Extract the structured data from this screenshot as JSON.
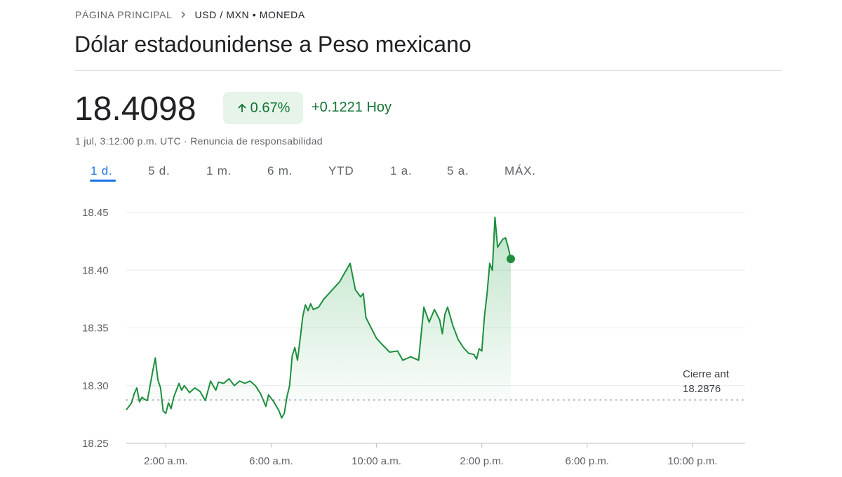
{
  "breadcrumb": {
    "home": "PÁGINA PRINCIPAL",
    "current": "USD / MXN • MONEDA"
  },
  "title": "Dólar estadounidense a Peso mexicano",
  "quote": {
    "price": "18.4098",
    "percent": "0.67%",
    "change": "+0.1221 Hoy",
    "timestamp": "1 jul, 3:12:00 p.m. UTC ·",
    "disclaimer": "Renuncia de responsabilidad"
  },
  "tabs": [
    "1 d.",
    "5 d.",
    "1 m.",
    "6 m.",
    "YTD",
    "1 a.",
    "5 a.",
    "MÁX."
  ],
  "active_tab": "1 d.",
  "colors": {
    "up": "#137333",
    "line": "#1e8e3e",
    "accent": "#1a73e8"
  },
  "chart_data": {
    "type": "line",
    "ylim": [
      18.25,
      18.45
    ],
    "xlim": [
      0.5,
      24
    ],
    "yticks": [
      "18.45",
      "18.40",
      "18.35",
      "18.30",
      "18.25"
    ],
    "xticks": [
      "2:00 a.m.",
      "6:00 a.m.",
      "10:00 a.m.",
      "2:00 p.m.",
      "6:00 p.m.",
      "10:00 p.m."
    ],
    "xtick_hours": [
      2,
      6,
      10,
      14,
      18,
      22
    ],
    "previous_close": 18.2876,
    "previous_close_label": "Cierre ant",
    "previous_close_value": "18.2876",
    "x": [
      0.5,
      0.7,
      0.8,
      0.9,
      1.0,
      1.1,
      1.2,
      1.3,
      1.5,
      1.6,
      1.7,
      1.8,
      1.9,
      2.0,
      2.1,
      2.2,
      2.3,
      2.5,
      2.6,
      2.7,
      2.9,
      3.1,
      3.3,
      3.5,
      3.7,
      3.9,
      4.0,
      4.2,
      4.4,
      4.6,
      4.8,
      5.0,
      5.2,
      5.4,
      5.6,
      5.8,
      5.9,
      6.1,
      6.3,
      6.4,
      6.5,
      6.6,
      6.7,
      6.8,
      6.9,
      7.0,
      7.1,
      7.2,
      7.3,
      7.4,
      7.5,
      7.6,
      7.8,
      8.0,
      8.2,
      8.4,
      8.6,
      8.8,
      9.0,
      9.2,
      9.4,
      9.5,
      9.6,
      9.8,
      10.0,
      10.2,
      10.5,
      10.8,
      11.0,
      11.3,
      11.6,
      11.8,
      12.0,
      12.2,
      12.4,
      12.5,
      12.6,
      12.7,
      12.9,
      13.1,
      13.3,
      13.5,
      13.7,
      13.8,
      13.9,
      14.0,
      14.1,
      14.2,
      14.3,
      14.4,
      14.5,
      14.6,
      14.8,
      14.9,
      15.0,
      15.1
    ],
    "y": [
      18.279,
      18.285,
      18.293,
      18.298,
      18.286,
      18.29,
      18.288,
      18.287,
      18.312,
      18.324,
      18.305,
      18.298,
      18.278,
      18.276,
      18.285,
      18.28,
      18.29,
      18.302,
      18.296,
      18.3,
      18.294,
      18.298,
      18.295,
      18.287,
      18.304,
      18.296,
      18.303,
      18.302,
      18.306,
      18.3,
      18.304,
      18.302,
      18.304,
      18.3,
      18.293,
      18.282,
      18.292,
      18.286,
      18.278,
      18.272,
      18.276,
      18.29,
      18.3,
      18.326,
      18.333,
      18.322,
      18.34,
      18.36,
      18.37,
      18.365,
      18.371,
      18.366,
      18.368,
      18.375,
      18.38,
      18.385,
      18.39,
      18.398,
      18.406,
      18.383,
      18.377,
      18.38,
      18.359,
      18.35,
      18.341,
      18.336,
      18.329,
      18.33,
      18.322,
      18.325,
      18.322,
      18.368,
      18.355,
      18.366,
      18.357,
      18.345,
      18.362,
      18.368,
      18.352,
      18.34,
      18.333,
      18.328,
      18.327,
      18.323,
      18.332,
      18.33,
      18.36,
      18.38,
      18.406,
      18.4,
      18.446,
      18.42,
      18.427,
      18.428,
      18.42,
      18.4098
    ]
  }
}
